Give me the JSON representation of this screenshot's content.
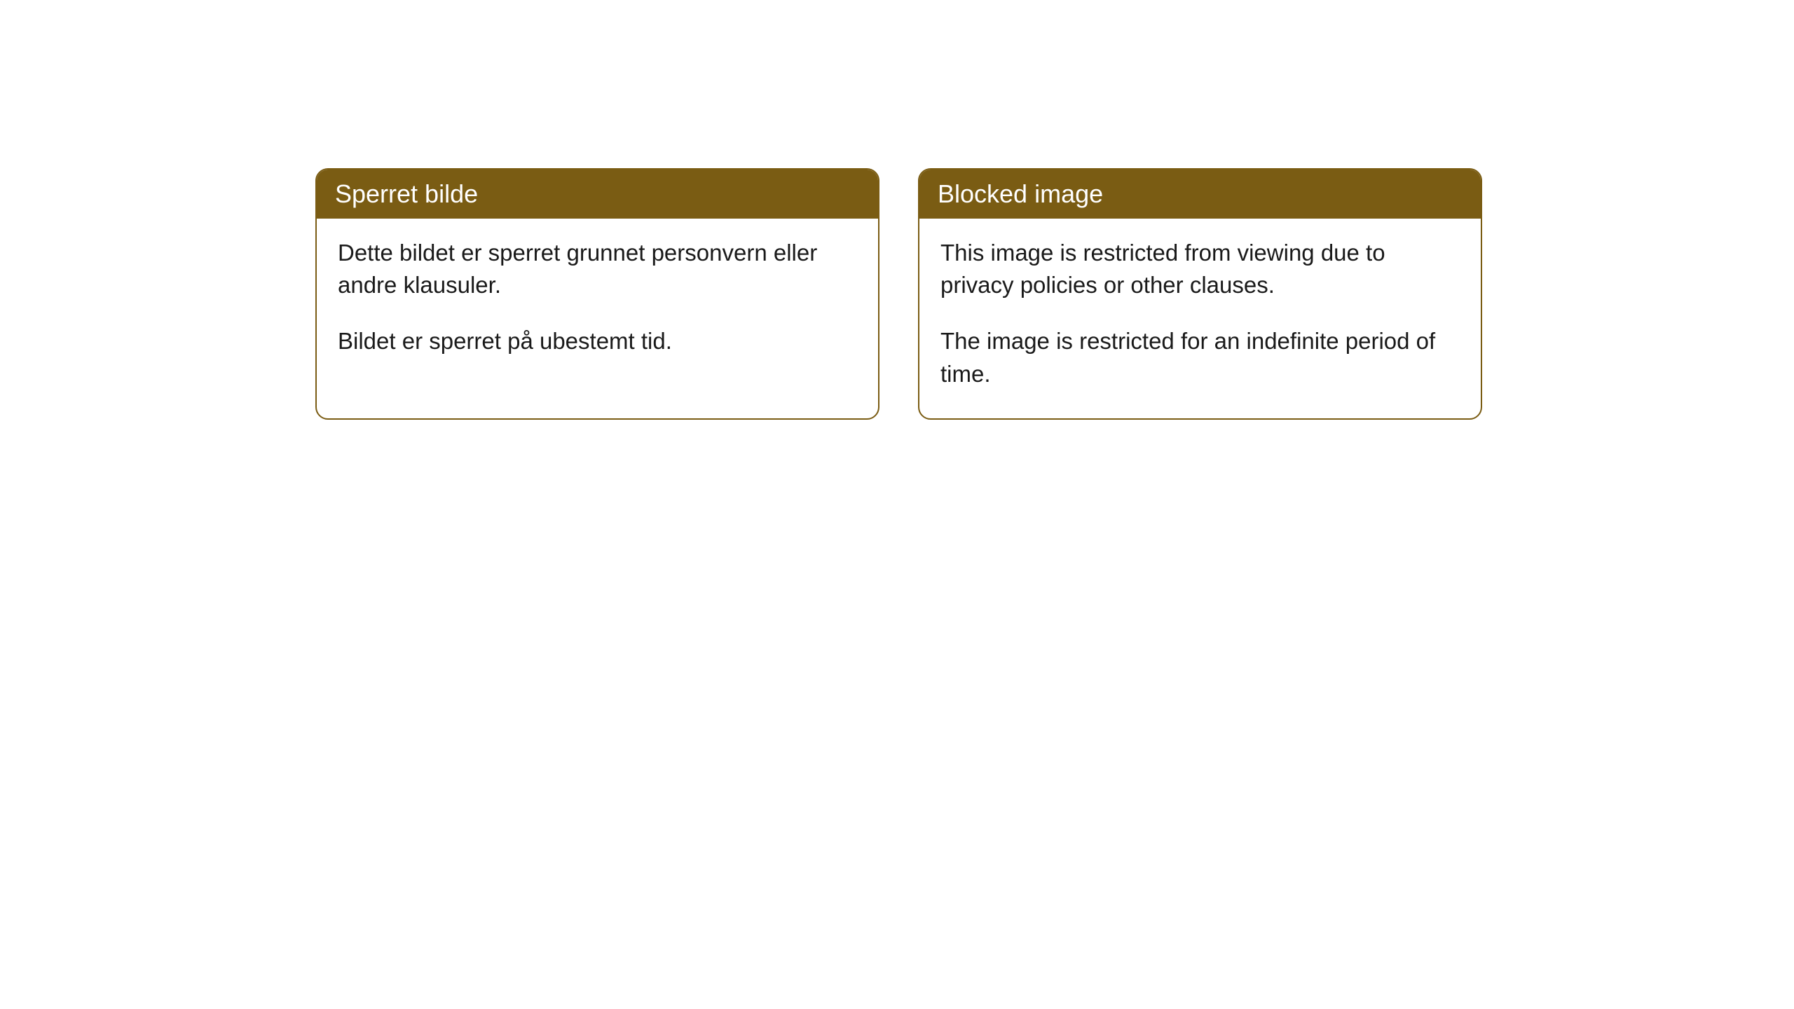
{
  "cards": [
    {
      "title": "Sperret bilde",
      "para1": "Dette bildet er sperret grunnet personvern eller andre klausuler.",
      "para2": "Bildet er sperret på ubestemt tid."
    },
    {
      "title": "Blocked image",
      "para1": "This image is restricted from viewing due to privacy policies or other clauses.",
      "para2": "The image is restricted for an indefinite period of time."
    }
  ],
  "styling": {
    "card_border_color": "#7a5c13",
    "card_header_bg": "#7a5c13",
    "card_header_text_color": "#ffffff",
    "card_body_bg": "#ffffff",
    "card_body_text_color": "#1a1a1a",
    "border_radius": 18,
    "header_fontsize": 36,
    "body_fontsize": 33
  }
}
